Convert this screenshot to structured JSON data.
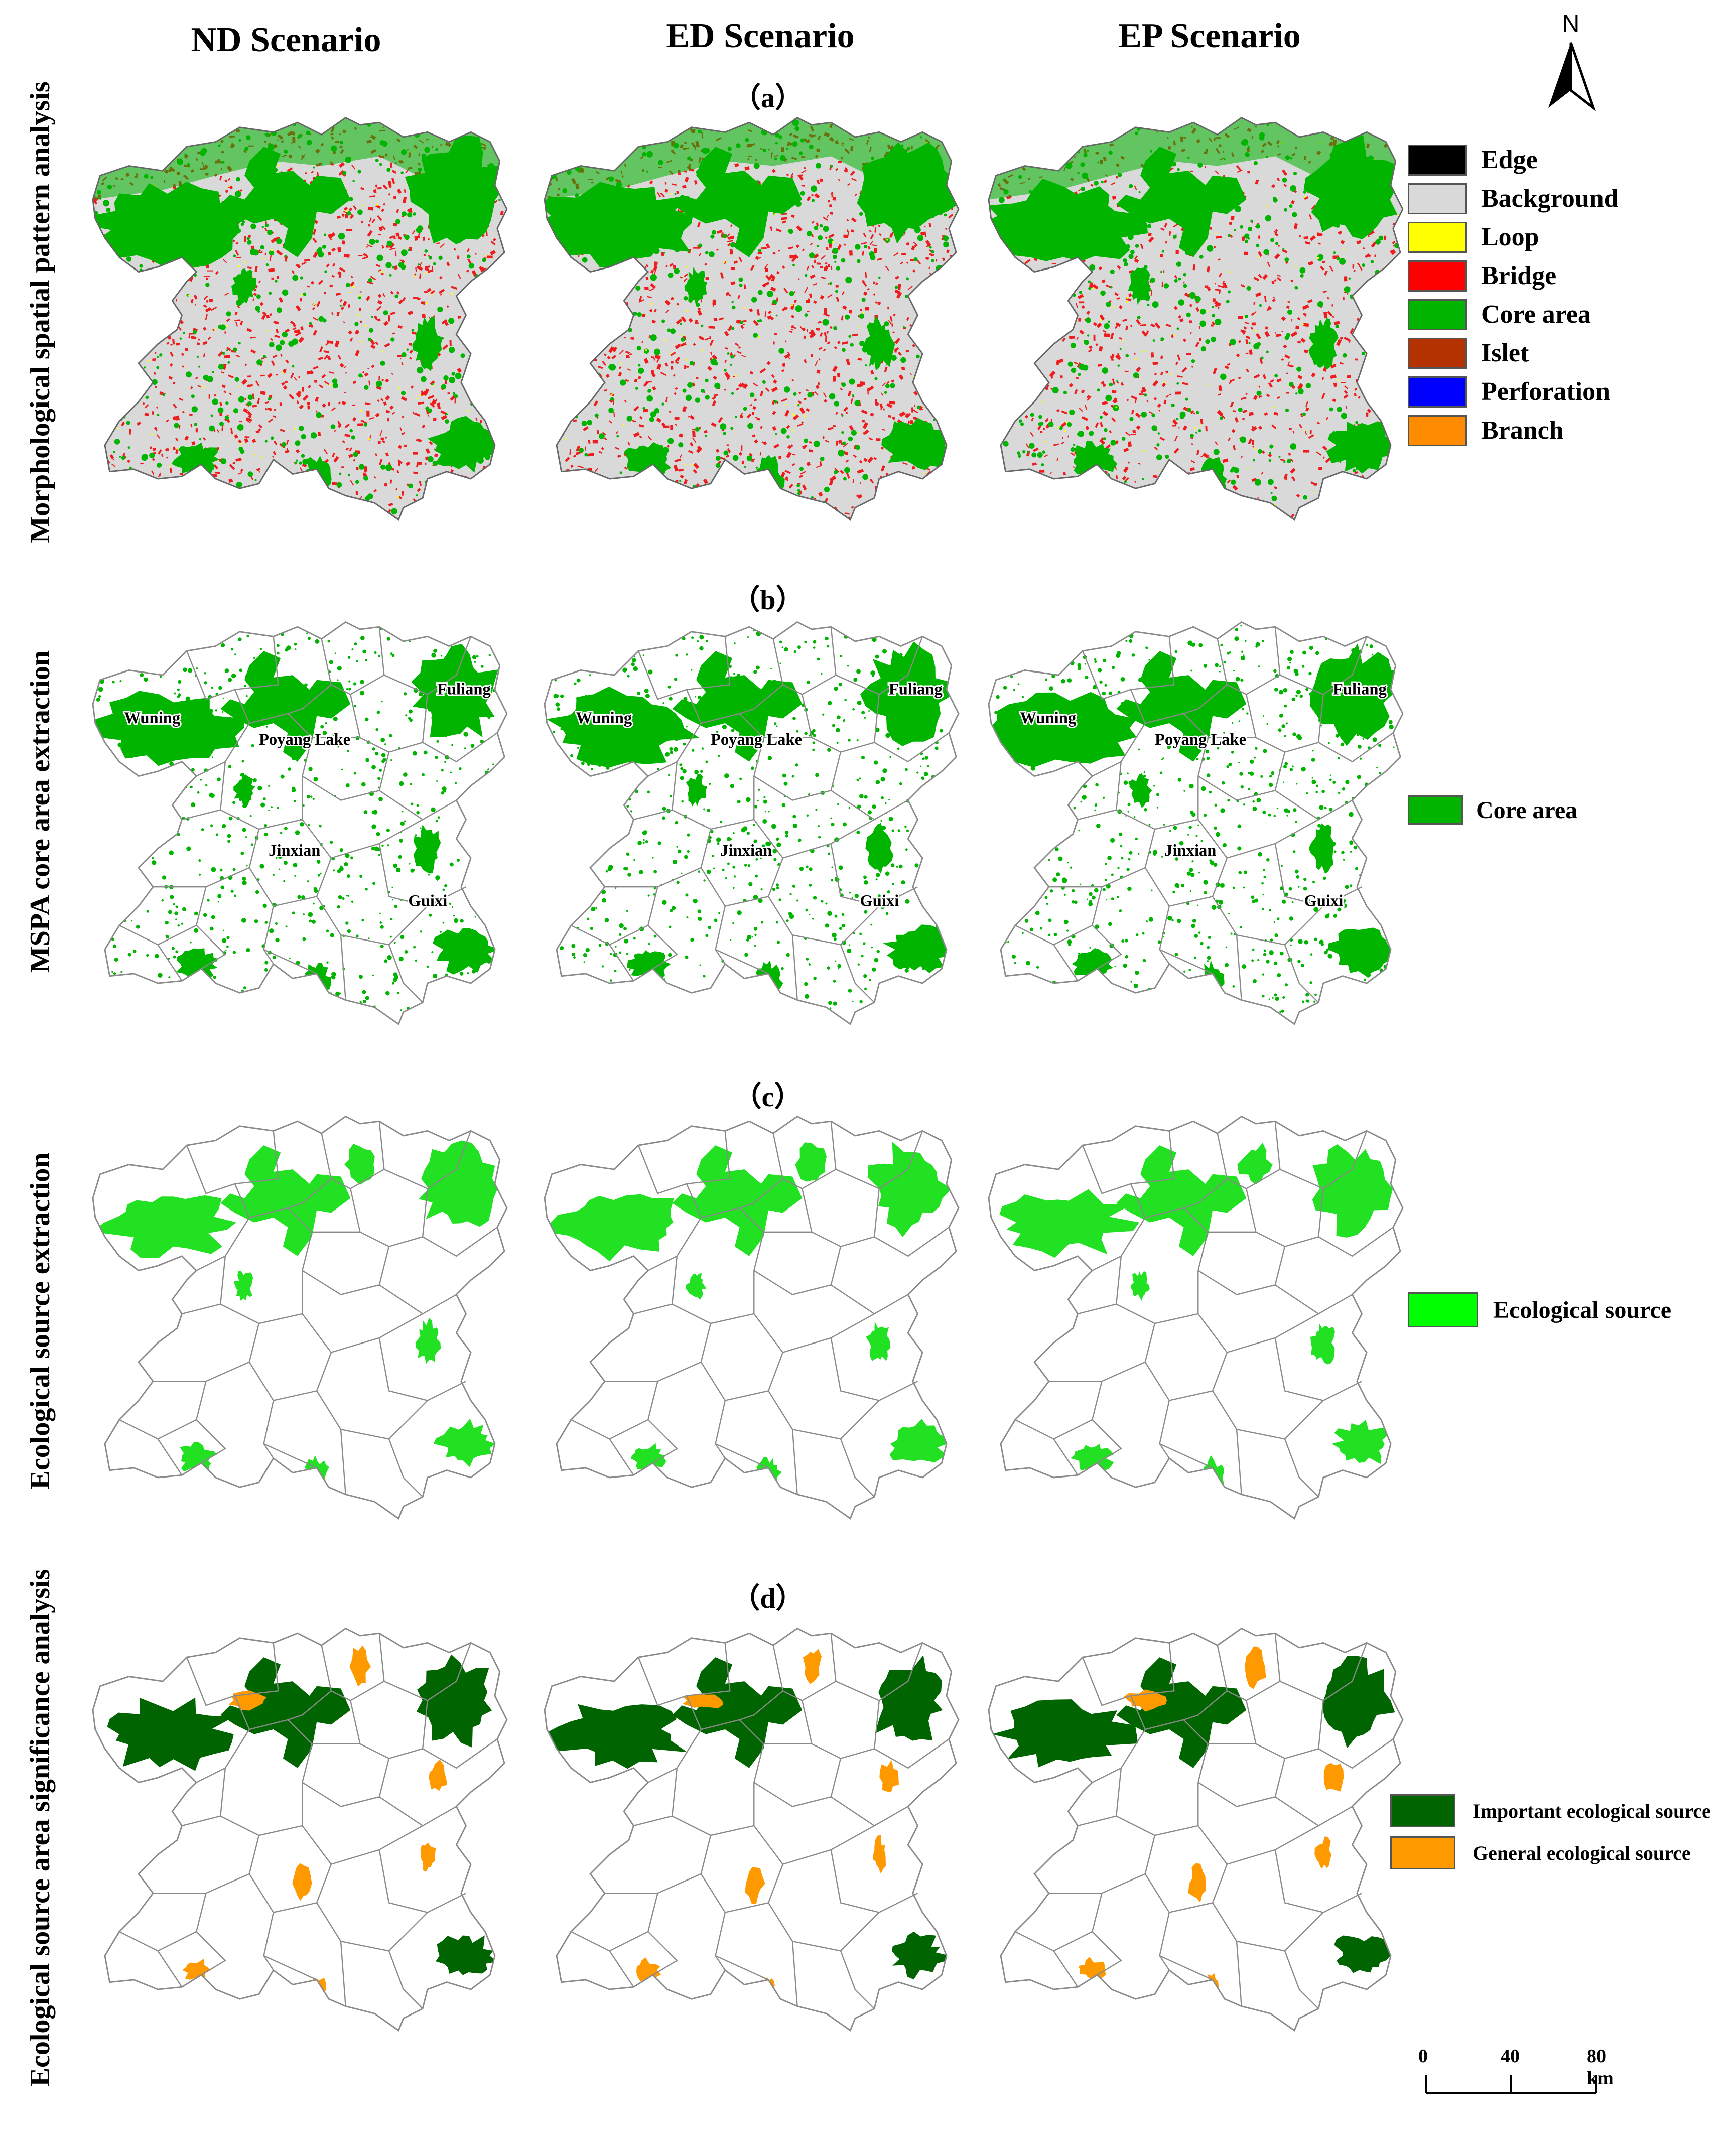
{
  "columns": [
    "ND Scenario",
    "ED Scenario",
    "EP Scenario"
  ],
  "rows": [
    {
      "label": "Morphological spatial pattern analysis",
      "panel": "（a）"
    },
    {
      "label": "MSPA core area extraction",
      "panel": "（b）"
    },
    {
      "label": "Ecological source extraction",
      "panel": "（c）"
    },
    {
      "label": "Ecological source area significance analysis",
      "panel": "（d）"
    }
  ],
  "north_arrow": {
    "letter": "N"
  },
  "legend_a": [
    {
      "label": "Edge",
      "color": "#000000"
    },
    {
      "label": "Background",
      "color": "#d9d9d9"
    },
    {
      "label": "Loop",
      "color": "#ffff00"
    },
    {
      "label": "Bridge",
      "color": "#ff0000"
    },
    {
      "label": "Core area",
      "color": "#00b400"
    },
    {
      "label": "Islet",
      "color": "#b43200"
    },
    {
      "label": "Perforation",
      "color": "#0000ff"
    },
    {
      "label": "Branch",
      "color": "#ff8c00"
    }
  ],
  "legend_b": [
    {
      "label": "Core area",
      "color": "#00b400"
    }
  ],
  "legend_c": [
    {
      "label": "Ecological source",
      "color": "#00ff00"
    }
  ],
  "legend_d": [
    {
      "label": "Important ecological source",
      "color": "#006400"
    },
    {
      "label": "General ecological source",
      "color": "#ff9900"
    }
  ],
  "place_names": {
    "ND": [
      "Wuning",
      "Poyang Lake",
      "Fuliang",
      "Jinxian",
      "Guixi"
    ],
    "ED": [
      "Wuning",
      "Poyang Lake",
      "Fuliang",
      "Jinxian",
      "Guixi"
    ],
    "EP": [
      "Wuning",
      "Poyang Lake",
      "Fuliang",
      "Jinxian",
      "Guixi"
    ]
  },
  "scale_bar": {
    "ticks": [
      "0",
      "40",
      "80 km"
    ]
  }
}
